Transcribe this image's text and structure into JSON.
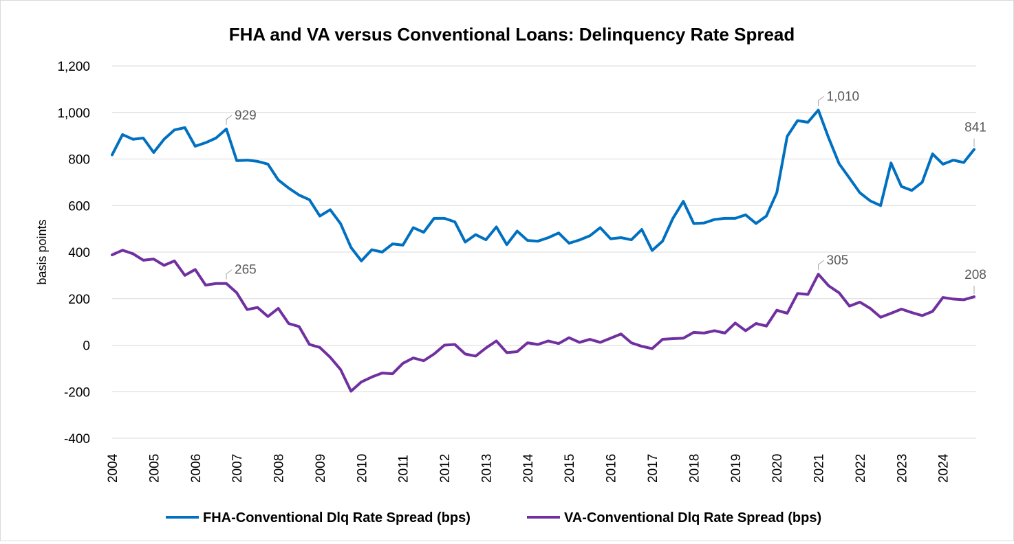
{
  "chart_data": {
    "type": "line",
    "title": "FHA and VA versus Conventional Loans: Delinquency Rate Spread",
    "ylabel": "basis points",
    "xlabel": "",
    "ylim": [
      -400,
      1200
    ],
    "yticks": [
      -400,
      -200,
      0,
      200,
      400,
      600,
      800,
      1000,
      1200
    ],
    "ytick_labels": [
      "-400",
      "-200",
      "0",
      "200",
      "400",
      "600",
      "800",
      "1,000",
      "1,200"
    ],
    "xticks": [
      "2004",
      "2005",
      "2006",
      "2007",
      "2008",
      "2009",
      "2010",
      "2011",
      "2012",
      "2013",
      "2014",
      "2015",
      "2016",
      "2017",
      "2018",
      "2019",
      "2020",
      "2021",
      "2022",
      "2023",
      "2024"
    ],
    "x_start": "2004 Q1",
    "frequency": "quarterly",
    "grid": true,
    "legend_position": "bottom",
    "series": [
      {
        "name": "FHA-Conventional Dlq Rate Spread (bps)",
        "color": "#0070C0",
        "values": [
          818,
          905,
          885,
          890,
          828,
          885,
          925,
          935,
          855,
          870,
          890,
          929,
          793,
          795,
          790,
          778,
          710,
          675,
          645,
          625,
          555,
          582,
          522,
          420,
          362,
          410,
          400,
          435,
          430,
          505,
          485,
          545,
          545,
          530,
          443,
          475,
          453,
          508,
          432,
          490,
          450,
          447,
          462,
          482,
          438,
          452,
          470,
          505,
          457,
          462,
          453,
          497,
          407,
          447,
          545,
          618,
          523,
          525,
          540,
          545,
          545,
          560,
          523,
          555,
          655,
          897,
          965,
          958,
          1010,
          890,
          780,
          718,
          655,
          620,
          600,
          783,
          682,
          665,
          700,
          822,
          778,
          795,
          785,
          841
        ]
      },
      {
        "name": "VA-Conventional Dlq Rate Spread (bps)",
        "color": "#7030A0",
        "values": [
          388,
          408,
          393,
          365,
          370,
          343,
          362,
          300,
          325,
          258,
          265,
          265,
          225,
          153,
          162,
          123,
          158,
          93,
          80,
          3,
          -10,
          -52,
          -105,
          -198,
          -158,
          -137,
          -120,
          -123,
          -78,
          -55,
          -67,
          -38,
          0,
          3,
          -38,
          -47,
          -12,
          18,
          -32,
          -28,
          10,
          3,
          18,
          7,
          32,
          12,
          25,
          12,
          30,
          48,
          10,
          -5,
          -15,
          25,
          28,
          30,
          55,
          52,
          62,
          52,
          95,
          62,
          93,
          82,
          150,
          137,
          222,
          218,
          305,
          255,
          225,
          168,
          185,
          158,
          120,
          137,
          155,
          140,
          127,
          145,
          205,
          198,
          195,
          208
        ]
      }
    ],
    "annotations": [
      {
        "series": 0,
        "index": 11,
        "label": "929"
      },
      {
        "series": 0,
        "index": 68,
        "label": "1,010"
      },
      {
        "series": 0,
        "index": 83,
        "label": "841"
      },
      {
        "series": 1,
        "index": 11,
        "label": "265"
      },
      {
        "series": 1,
        "index": 68,
        "label": "305"
      },
      {
        "series": 1,
        "index": 83,
        "label": "208"
      }
    ]
  }
}
